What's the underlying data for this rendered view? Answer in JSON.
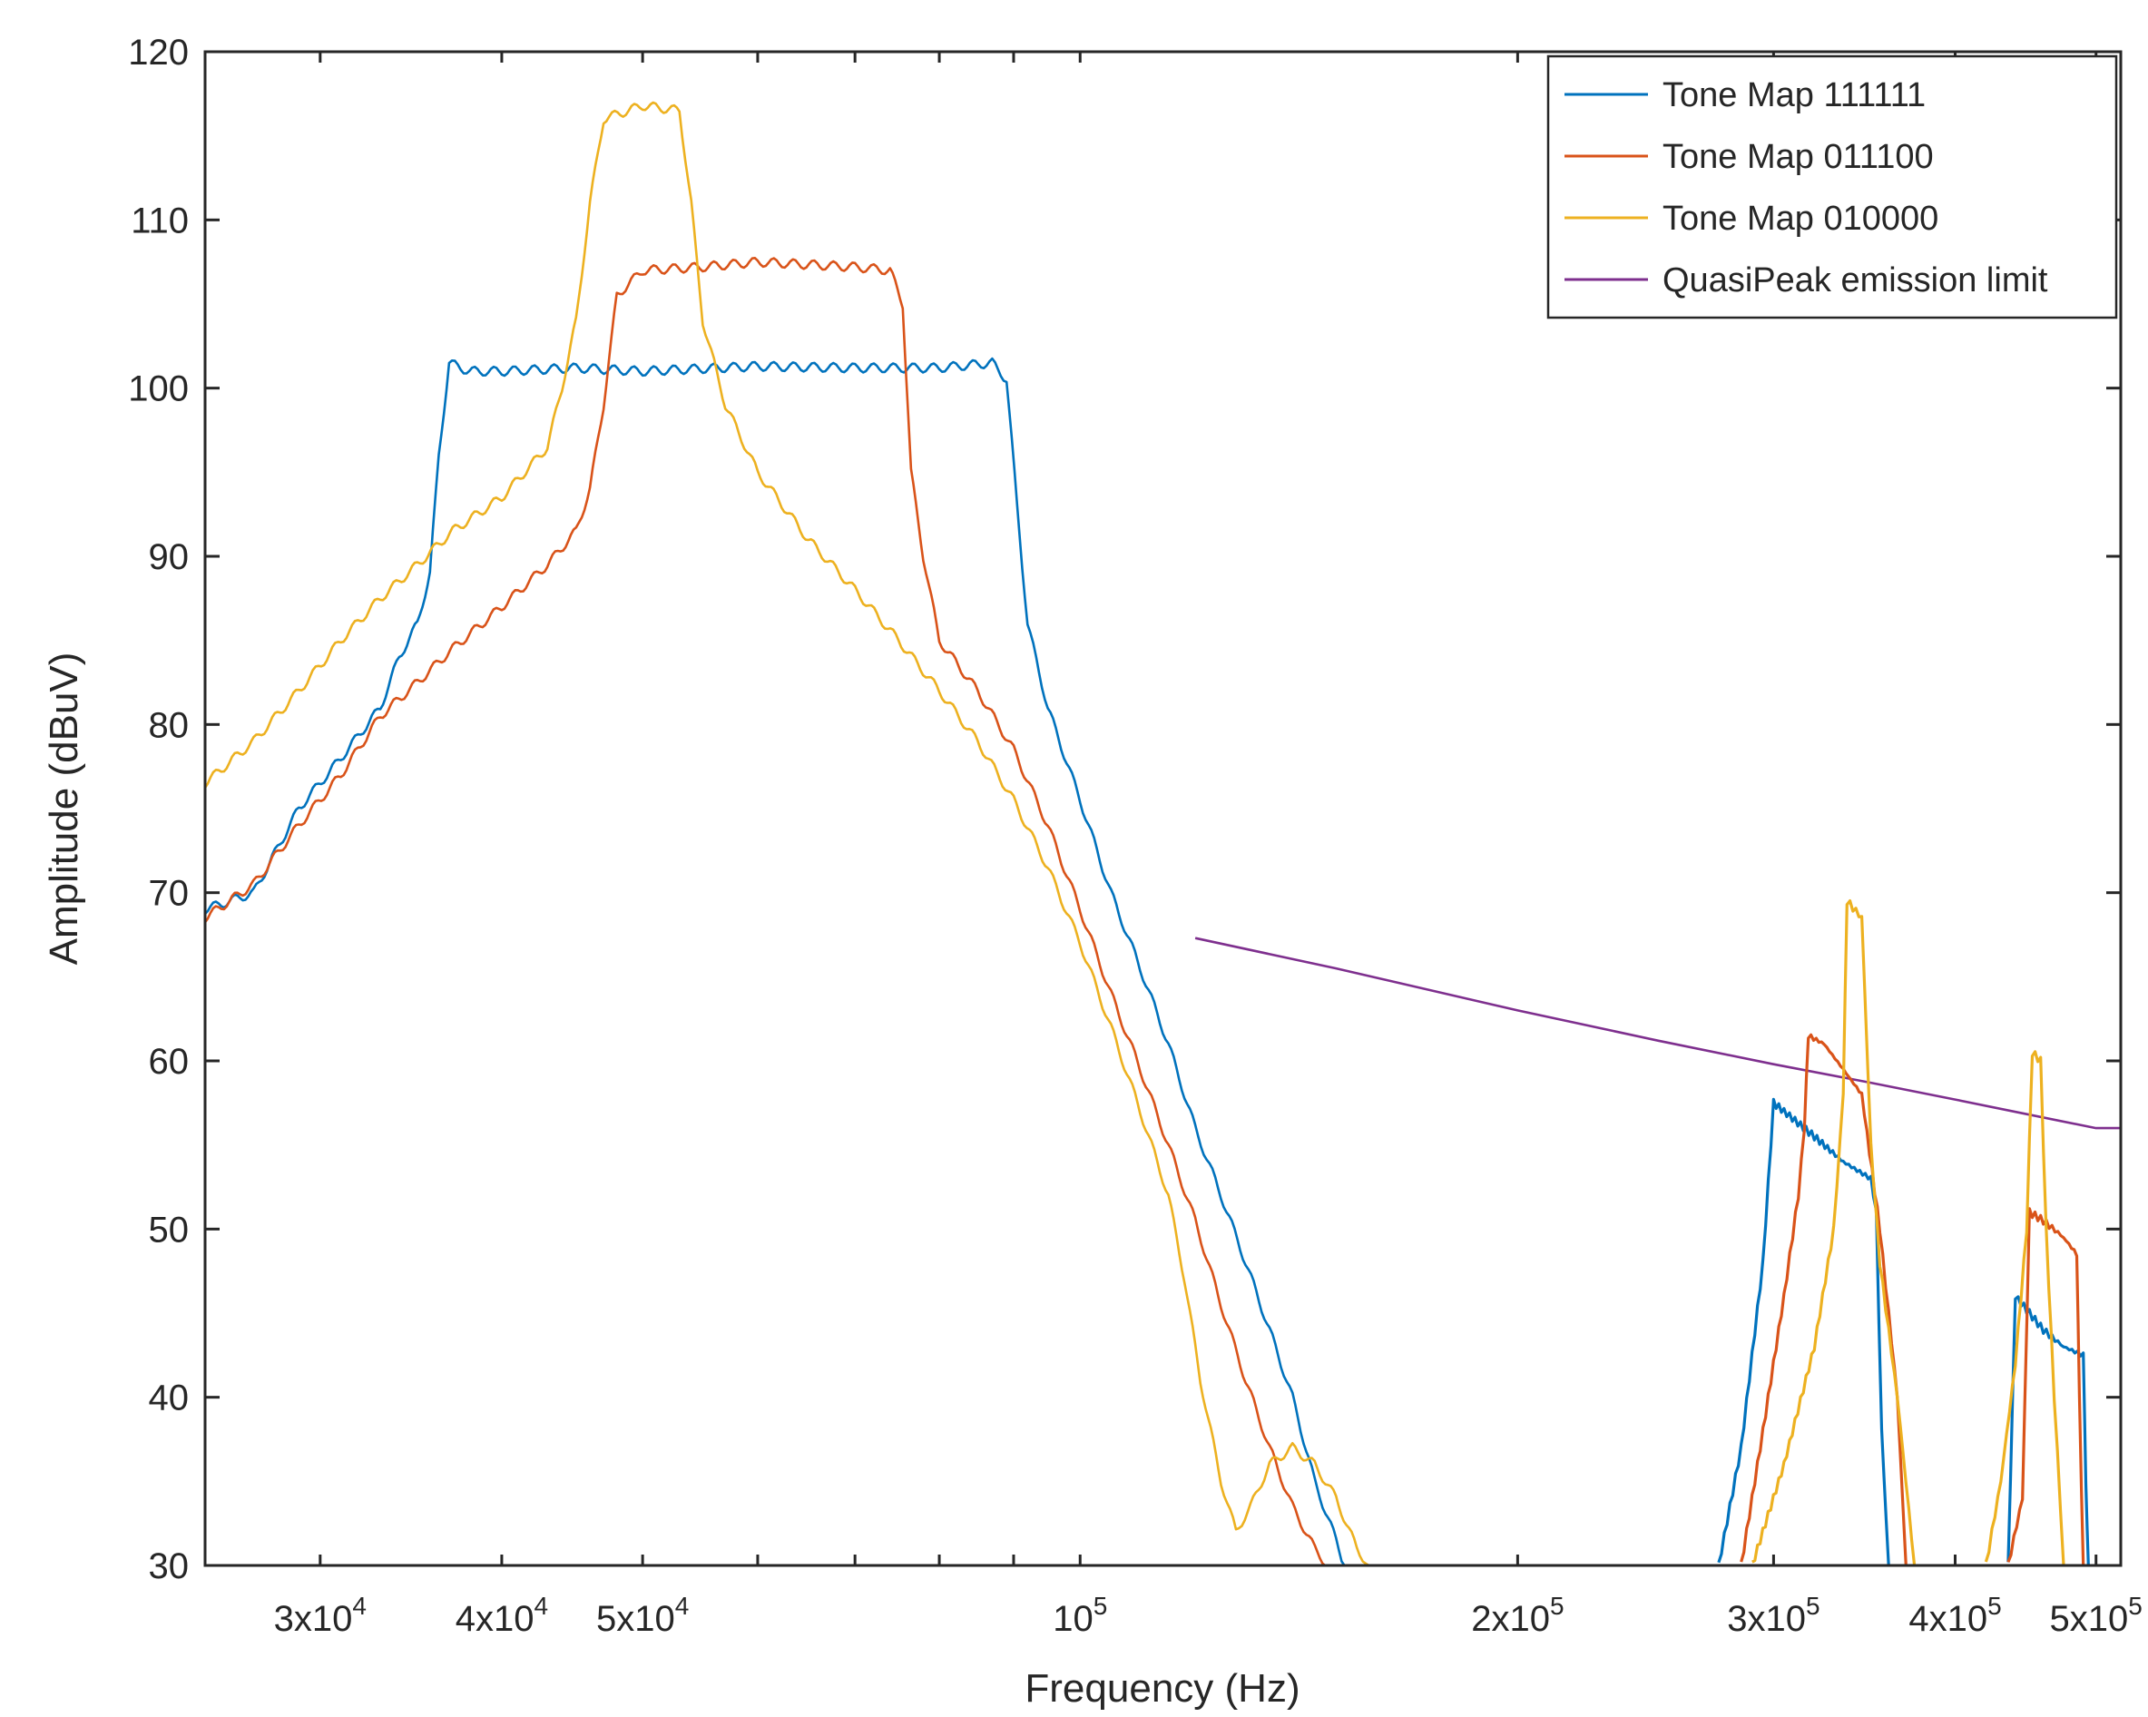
{
  "chart_data": {
    "type": "line",
    "title": "",
    "xlabel": "Frequency (Hz)",
    "ylabel": "Amplitude (dBuV)",
    "xscale": "log",
    "xlim": [
      25000,
      520000
    ],
    "ylim": [
      30,
      120
    ],
    "grid": false,
    "legend_position": "top-right",
    "yticks": [
      30,
      40,
      50,
      60,
      70,
      80,
      90,
      100,
      110,
      120
    ],
    "xticks": [
      {
        "value": 30000,
        "mantissa": "3x10",
        "exponent": "4"
      },
      {
        "value": 40000,
        "mantissa": "4x10",
        "exponent": "4"
      },
      {
        "value": 50000,
        "mantissa": "5x10",
        "exponent": "4"
      },
      {
        "value": 100000,
        "mantissa": "10",
        "exponent": "5"
      },
      {
        "value": 200000,
        "mantissa": "2x10",
        "exponent": "5"
      },
      {
        "value": 300000,
        "mantissa": "3x10",
        "exponent": "5"
      },
      {
        "value": 400000,
        "mantissa": "4x10",
        "exponent": "5"
      },
      {
        "value": 500000,
        "mantissa": "5x10",
        "exponent": "5"
      }
    ],
    "series": [
      {
        "name": "Tone Map 111111",
        "color": "#0072BD",
        "points": [
          [
            25000,
            69
          ],
          [
            27000,
            70
          ],
          [
            29000,
            75
          ],
          [
            31000,
            78
          ],
          [
            33000,
            81
          ],
          [
            34000,
            84
          ],
          [
            35000,
            86
          ],
          [
            35700,
            89
          ],
          [
            36200,
            96
          ],
          [
            36800,
            101.5
          ],
          [
            38000,
            101
          ],
          [
            40000,
            101
          ],
          [
            45000,
            101.2
          ],
          [
            50000,
            101
          ],
          [
            60000,
            101.3
          ],
          [
            70000,
            101.2
          ],
          [
            80000,
            101.2
          ],
          [
            87000,
            101.5
          ],
          [
            89000,
            100.5
          ],
          [
            90500,
            93
          ],
          [
            92000,
            86
          ],
          [
            95000,
            81
          ],
          [
            100000,
            75.5
          ],
          [
            105000,
            70
          ],
          [
            110000,
            65.5
          ],
          [
            115000,
            61
          ],
          [
            120000,
            56
          ],
          [
            125000,
            52
          ],
          [
            130000,
            48
          ],
          [
            135000,
            44
          ],
          [
            140000,
            40
          ],
          [
            145000,
            35
          ],
          [
            150000,
            31.5
          ],
          [
            152000,
            30
          ]
        ]
      },
      {
        "name": "Tone Map 011100",
        "color": "#D95319",
        "points": [
          [
            25000,
            68.5
          ],
          [
            27000,
            70.5
          ],
          [
            29000,
            74
          ],
          [
            31000,
            77
          ],
          [
            33000,
            80.5
          ],
          [
            35000,
            82.5
          ],
          [
            37000,
            84.5
          ],
          [
            40000,
            87
          ],
          [
            43000,
            89.5
          ],
          [
            45000,
            91.5
          ],
          [
            46000,
            94
          ],
          [
            47000,
            99
          ],
          [
            48000,
            105.5
          ],
          [
            50000,
            107
          ],
          [
            55000,
            107.2
          ],
          [
            60000,
            107.5
          ],
          [
            70000,
            107.2
          ],
          [
            74000,
            107
          ],
          [
            75500,
            105
          ],
          [
            76500,
            95
          ],
          [
            78000,
            90
          ],
          [
            80000,
            85
          ],
          [
            85000,
            82
          ],
          [
            90000,
            78.5
          ],
          [
            95000,
            74
          ],
          [
            100000,
            69
          ],
          [
            105000,
            64
          ],
          [
            110000,
            59.5
          ],
          [
            115000,
            55
          ],
          [
            120000,
            50.5
          ],
          [
            125000,
            45.5
          ],
          [
            130000,
            41
          ],
          [
            135000,
            37
          ],
          [
            140000,
            33.5
          ],
          [
            145000,
            31
          ],
          [
            148000,
            30
          ]
        ]
      },
      {
        "name": "Tone Map 010000",
        "color": "#EDB120",
        "points": [
          [
            25000,
            76.5
          ],
          [
            27000,
            79
          ],
          [
            29000,
            82
          ],
          [
            31000,
            85
          ],
          [
            33000,
            87.5
          ],
          [
            35000,
            89.5
          ],
          [
            37000,
            91.5
          ],
          [
            40000,
            93.5
          ],
          [
            43000,
            96.5
          ],
          [
            44000,
            100
          ],
          [
            45000,
            104
          ],
          [
            46000,
            111
          ],
          [
            47000,
            116
          ],
          [
            50000,
            116.8
          ],
          [
            53000,
            116.5
          ],
          [
            54000,
            111
          ],
          [
            55000,
            104
          ],
          [
            57000,
            99
          ],
          [
            60000,
            95
          ],
          [
            65000,
            91
          ],
          [
            70000,
            88
          ],
          [
            75000,
            85
          ],
          [
            80000,
            82
          ],
          [
            85000,
            79
          ],
          [
            90000,
            75.5
          ],
          [
            95000,
            71.5
          ],
          [
            100000,
            67
          ],
          [
            105000,
            62
          ],
          [
            110000,
            57
          ],
          [
            115000,
            52
          ],
          [
            118000,
            47
          ],
          [
            121000,
            41
          ],
          [
            125000,
            35
          ],
          [
            128000,
            32
          ],
          [
            131000,
            33.5
          ],
          [
            135000,
            36
          ],
          [
            140000,
            37
          ],
          [
            145000,
            36
          ],
          [
            150000,
            34
          ],
          [
            155000,
            31
          ],
          [
            158000,
            30
          ]
        ]
      },
      {
        "name": "QuasiPeak emission limit",
        "color": "#7E2F8E",
        "points": [
          [
            120000,
            67.3
          ],
          [
            150000,
            65.5
          ],
          [
            200000,
            63
          ],
          [
            250000,
            61.2
          ],
          [
            300000,
            59.8
          ],
          [
            350000,
            58.7
          ],
          [
            400000,
            57.7
          ],
          [
            450000,
            56.8
          ],
          [
            500000,
            56
          ],
          [
            520000,
            56
          ]
        ]
      }
    ],
    "extra_segments": [
      {
        "series": "Tone Map 111111",
        "points": [
          [
            275000,
            30
          ],
          [
            285000,
            37
          ],
          [
            295000,
            48
          ],
          [
            300000,
            57.5
          ],
          [
            305000,
            57
          ],
          [
            320000,
            55.5
          ],
          [
            335000,
            54
          ],
          [
            350000,
            53
          ],
          [
            353000,
            51
          ],
          [
            356000,
            38
          ],
          [
            360000,
            30
          ]
        ]
      },
      {
        "series": "Tone Map 111111",
        "points": [
          [
            435000,
            30
          ],
          [
            440000,
            46
          ],
          [
            450000,
            45
          ],
          [
            460000,
            44
          ],
          [
            475000,
            43
          ],
          [
            490000,
            42.5
          ],
          [
            492000,
            35
          ],
          [
            494000,
            30
          ]
        ]
      },
      {
        "series": "Tone Map 011100",
        "points": [
          [
            285000,
            30
          ],
          [
            295000,
            38
          ],
          [
            305000,
            46
          ],
          [
            312000,
            52
          ],
          [
            315000,
            56
          ],
          [
            317000,
            61.5
          ],
          [
            325000,
            61
          ],
          [
            335000,
            59.5
          ],
          [
            345000,
            58
          ],
          [
            355000,
            50
          ],
          [
            365000,
            40
          ],
          [
            370000,
            30
          ]
        ]
      },
      {
        "series": "Tone Map 011100",
        "points": [
          [
            435000,
            30
          ],
          [
            445000,
            34
          ],
          [
            450000,
            51
          ],
          [
            460000,
            50.5
          ],
          [
            475000,
            49.5
          ],
          [
            485000,
            48.5
          ],
          [
            487000,
            40
          ],
          [
            490000,
            30
          ]
        ]
      },
      {
        "series": "Tone Map 010000",
        "points": [
          [
            290000,
            30
          ],
          [
            305000,
            36
          ],
          [
            320000,
            43
          ],
          [
            330000,
            50
          ],
          [
            335000,
            58
          ],
          [
            337000,
            69.5
          ],
          [
            345000,
            68.5
          ],
          [
            350000,
            55
          ],
          [
            355000,
            48
          ],
          [
            365000,
            40
          ],
          [
            375000,
            30
          ]
        ]
      },
      {
        "series": "Tone Map 010000",
        "points": [
          [
            420000,
            30
          ],
          [
            430000,
            35
          ],
          [
            440000,
            42
          ],
          [
            448000,
            50
          ],
          [
            452000,
            60.5
          ],
          [
            458000,
            60
          ],
          [
            462000,
            50
          ],
          [
            468000,
            40
          ],
          [
            475000,
            30
          ]
        ]
      }
    ]
  }
}
